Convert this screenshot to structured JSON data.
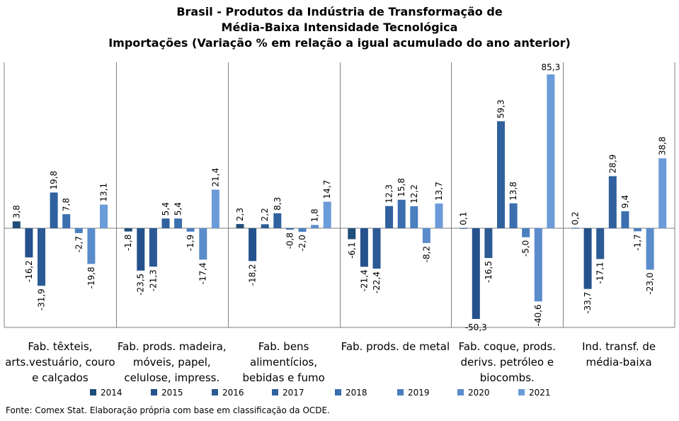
{
  "chart_data": {
    "type": "bar",
    "title": [
      "Brasil - Produtos da Indústria de Transformação de",
      "Média-Baixa Intensidade Tecnológica",
      "Importações (Variação % em relação a igual acumulado do ano anterior)"
    ],
    "categories": [
      [
        "Fab. têxteis,",
        "arts.vestuário, couro",
        "e calçados"
      ],
      [
        "Fab. prods. madeira,",
        "móveis, papel,",
        "celulose, impress."
      ],
      [
        "Fab. bens",
        "alimentícios,",
        "bebidas e fumo"
      ],
      [
        "Fab. prods. de metal"
      ],
      [
        "Fab. coque, prods.",
        "derivs. petróleo e",
        "biocombs."
      ],
      [
        "Ind. transf. de",
        "média-baixa"
      ]
    ],
    "series": [
      {
        "name": "2014",
        "color": "#1F4E79",
        "values": [
          3.8,
          -1.8,
          2.3,
          -6.1,
          0.1,
          0.2
        ]
      },
      {
        "name": "2015",
        "color": "#25518C",
        "values": [
          -16.2,
          -23.5,
          -18.2,
          -21.4,
          -50.3,
          -33.7
        ]
      },
      {
        "name": "2016",
        "color": "#2B5A94",
        "values": [
          -31.9,
          -21.3,
          2.2,
          -22.4,
          -16.5,
          -17.1
        ]
      },
      {
        "name": "2017",
        "color": "#30619E",
        "values": [
          19.8,
          5.4,
          8.3,
          12.3,
          59.3,
          28.9
        ]
      },
      {
        "name": "2018",
        "color": "#3A6EAF",
        "values": [
          7.8,
          5.4,
          -0.8,
          15.8,
          13.8,
          9.4
        ]
      },
      {
        "name": "2019",
        "color": "#4A7FC0",
        "values": [
          -2.7,
          -1.9,
          -2.0,
          12.2,
          -5.0,
          -1.7
        ]
      },
      {
        "name": "2020",
        "color": "#5A8CCC",
        "values": [
          -19.8,
          -17.4,
          1.8,
          -8.2,
          -40.6,
          -23.0
        ]
      },
      {
        "name": "2021",
        "color": "#6B9BD8",
        "values": [
          13.1,
          21.4,
          14.7,
          13.7,
          85.3,
          38.8
        ]
      }
    ],
    "data_labels": [
      [
        "3,8",
        "-16,2",
        "-31,9",
        "19,8",
        "7,8",
        "-2,7",
        "-19,8",
        "13,1"
      ],
      [
        "-1,8",
        "-23,5",
        "-21,3",
        "5,4",
        "5,4",
        "-1,9",
        "-17,4",
        "21,4"
      ],
      [
        "2,3",
        "-18,2",
        "2,2",
        "8,3",
        "-0,8",
        "-2,0",
        "1,8",
        "14,7"
      ],
      [
        "-6,1",
        "-21,4",
        "-22,4",
        "12,3",
        "15,8",
        "12,2",
        "-8,2",
        "13,7"
      ],
      [
        "0,1",
        "-50,3",
        "-16,5",
        "59,3",
        "13,8",
        "-5,0",
        "-40,6",
        "85,3"
      ],
      [
        "0,2",
        "-33,7",
        "-17,1",
        "28,9",
        "9,4",
        "-1,7",
        "-23,0",
        "38,8"
      ]
    ],
    "ylim": [
      -54,
      92
    ],
    "grid": false,
    "legend_position": "bottom"
  },
  "source": "Fonte: Comex Stat. Elaboração própria com base em classificação da OCDE."
}
